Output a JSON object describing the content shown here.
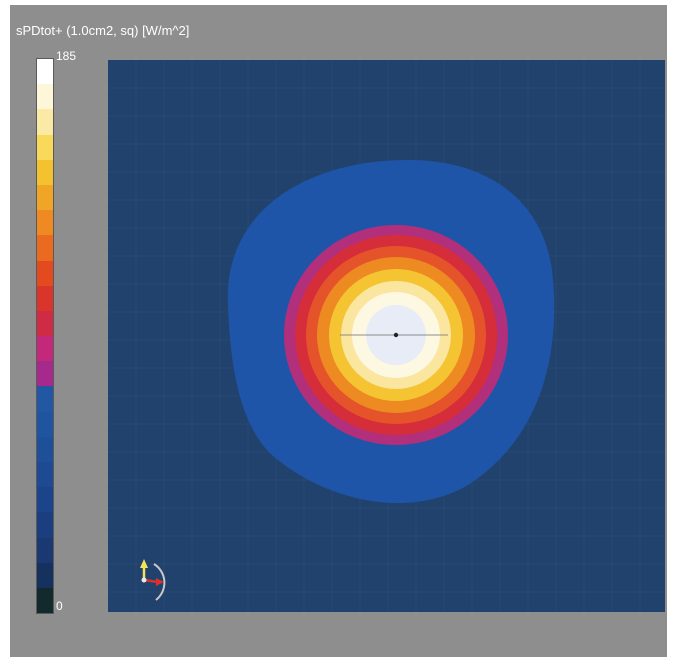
{
  "field_plot": {
    "quantity_title": "sPDtot+ (1.0cm2, sq) [W/m^2]",
    "colorbar": {
      "max_label": "185",
      "min_label": "0",
      "colors": [
        "#ffffff",
        "#fdf6d8",
        "#fbe9a6",
        "#f8d95a",
        "#f4c12f",
        "#f0a526",
        "#ee8a21",
        "#ea6a1f",
        "#e34a1d",
        "#d9352a",
        "#d02b45",
        "#c3287a",
        "#a52a8c",
        "#2257a3",
        "#1f55a0",
        "#1e509a",
        "#1d4a93",
        "#1c448a",
        "#1b3e80",
        "#1a3872",
        "#17315f",
        "#122a2c"
      ]
    },
    "contour_colors": {
      "background": "#22426e",
      "outer_ring": "#1e55a8",
      "magenta": "#b22f7c",
      "red": "#d62d3b",
      "orange_red": "#e5532a",
      "orange": "#ee8a22",
      "yellow": "#f5c433",
      "pale_yellow": "#fbe6a0",
      "cream": "#fdf8e2",
      "center": "#e8ecf7"
    },
    "peak_marker": "center-marker",
    "orientation_icon": "axes-gizmo-icon"
  }
}
